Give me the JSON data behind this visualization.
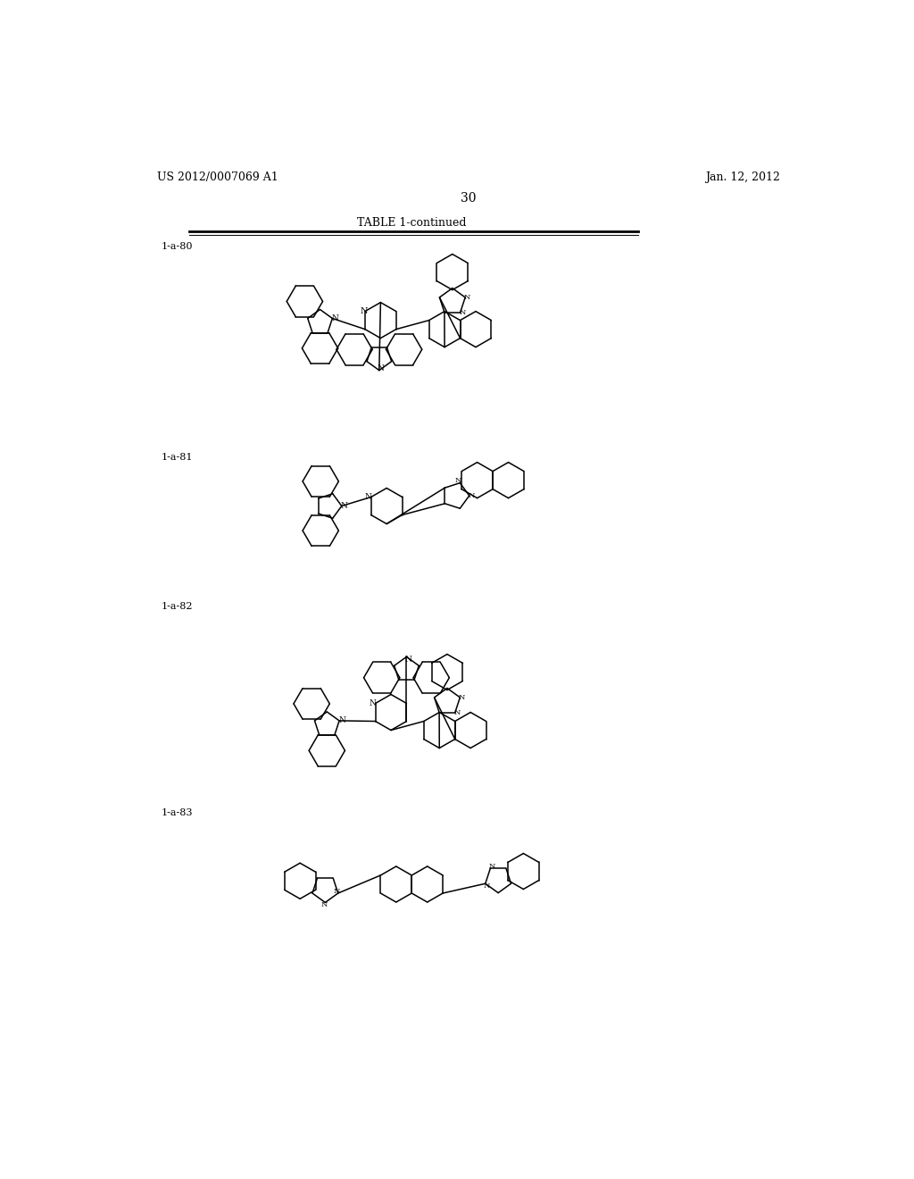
{
  "background_color": "#ffffff",
  "header_left": "US 2012/0007069 A1",
  "header_right": "Jan. 12, 2012",
  "page_number": "30",
  "table_title": "TABLE 1-continued",
  "line_color": "#000000",
  "text_color": "#000000",
  "font_size_header": 9,
  "font_size_label": 8,
  "font_size_table": 9,
  "font_size_page": 10,
  "lw": 1.1
}
